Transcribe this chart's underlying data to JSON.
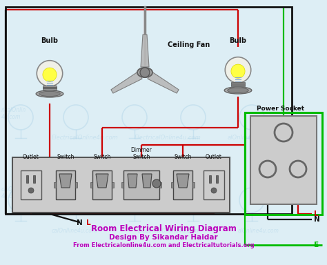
{
  "title": "Room Electrical Wiring Diagram",
  "subtitle1": "Design By Sikandar Haidar",
  "subtitle2": "From Electricalonline4u.com and Electricaltutorials.org",
  "bg_color": "#ddeef5",
  "main_box_color": "#111111",
  "power_box_color": "#00bb00",
  "wire_live_color": "#cc0000",
  "wire_neutral_color": "#111111",
  "wire_earth_color": "#00bb00",
  "text_title_color": "#bb00bb",
  "label_bulb1": "Bulb",
  "label_bulb2": "Bulb",
  "label_fan": "Ceiling Fan",
  "label_power_socket": "Power Socket",
  "label_N_left": "N",
  "label_L_left": "L",
  "label_L_right": "L",
  "label_N_right": "N",
  "label_E": "E",
  "wm_color": "#b0d4e8",
  "wm_alpha": 0.45,
  "switch_labels": [
    "Outlet",
    "Switch",
    "Switch",
    "Dimmer\nSwitch",
    "Switch",
    "Outlet"
  ],
  "figsize": [
    4.74,
    3.84
  ],
  "dpi": 100
}
